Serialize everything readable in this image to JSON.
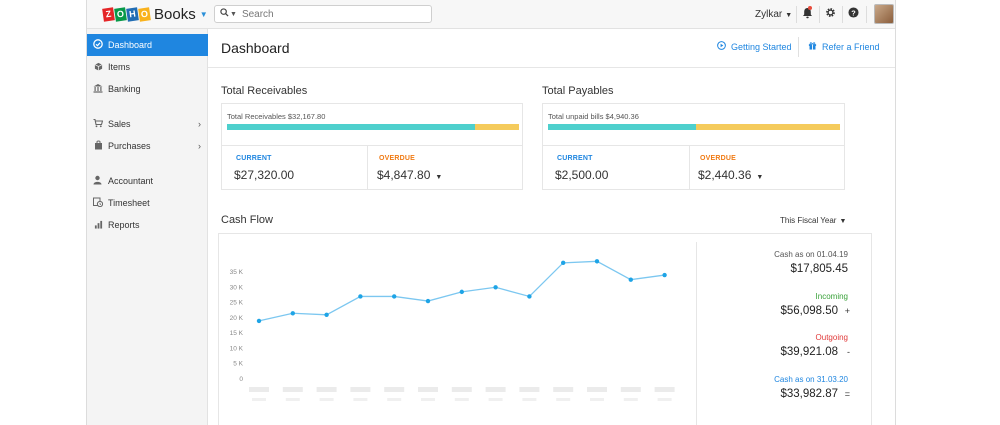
{
  "topbar": {
    "logo_letters": [
      "Z",
      "O",
      "H",
      "O"
    ],
    "logo_colors": [
      "#e42527",
      "#089949",
      "#226db4",
      "#f9b21d"
    ],
    "brand": "Books",
    "search_placeholder": "Search",
    "org_name": "Zylkar",
    "icons": [
      "search-icon",
      "bell-icon",
      "gear-icon",
      "help-icon"
    ]
  },
  "sidebar": {
    "items": [
      {
        "label": "Dashboard",
        "icon": "dashboard-icon",
        "active": true
      },
      {
        "label": "Items",
        "icon": "box-icon"
      },
      {
        "label": "Banking",
        "icon": "bank-icon"
      },
      {
        "label": "Sales",
        "icon": "cart-icon",
        "has_submenu": true
      },
      {
        "label": "Purchases",
        "icon": "bag-icon",
        "has_submenu": true
      },
      {
        "label": "Accountant",
        "icon": "user-icon"
      },
      {
        "label": "Timesheet",
        "icon": "clock-icon"
      },
      {
        "label": "Reports",
        "icon": "chart-icon"
      }
    ]
  },
  "header": {
    "title": "Dashboard",
    "getting_started": "Getting Started",
    "refer_friend": "Refer a Friend"
  },
  "receivables": {
    "title": "Total Receivables",
    "bar_label": "Total Receivables $32,167.80",
    "current_fraction": 0.85,
    "current_label": "CURRENT",
    "current_value": "$27,320.00",
    "overdue_label": "OVERDUE",
    "overdue_value": "$4,847.80"
  },
  "payables": {
    "title": "Total Payables",
    "bar_label": "Total unpaid bills $4,940.36",
    "current_fraction": 0.506,
    "current_label": "CURRENT",
    "current_value": "$2,500.00",
    "overdue_label": "OVERDUE",
    "overdue_value": "$2,440.36"
  },
  "cashflow": {
    "title": "Cash Flow",
    "period": "This Fiscal Year",
    "summary": {
      "opening_label": "Cash as on 01.04.19",
      "opening_value": "$17,805.45",
      "incoming_label": "Incoming",
      "incoming_value": "$56,098.50",
      "incoming_sign": "+",
      "outgoing_label": "Outgoing",
      "outgoing_value": "$39,921.08",
      "outgoing_sign": "-",
      "closing_label": "Cash as on 31.03.20",
      "closing_value": "$33,982.87",
      "closing_sign": "="
    }
  },
  "colors": {
    "accent": "#1f86e0",
    "current_label": "#1f86e0",
    "overdue_label": "#f07b15",
    "incoming": "#3aa23a",
    "outgoing": "#e03a3a",
    "closing": "#1f86e0",
    "bar_current": "#4ed0cd",
    "bar_overdue": "#f5cb5c",
    "line": "#7cc7f0",
    "point": "#1ea4e6"
  },
  "chart_data": {
    "type": "line",
    "y_tick_labels": [
      "35 K",
      "30 K",
      "25 K",
      "20 K",
      "15 K",
      "10 K",
      "5 K",
      "0"
    ],
    "ylim": [
      0,
      35000
    ],
    "series": [
      {
        "values": [
          19000,
          21500,
          21000,
          27000,
          27000,
          25500,
          28500,
          30000,
          27000,
          38000,
          38500,
          32500,
          34000
        ]
      }
    ]
  }
}
